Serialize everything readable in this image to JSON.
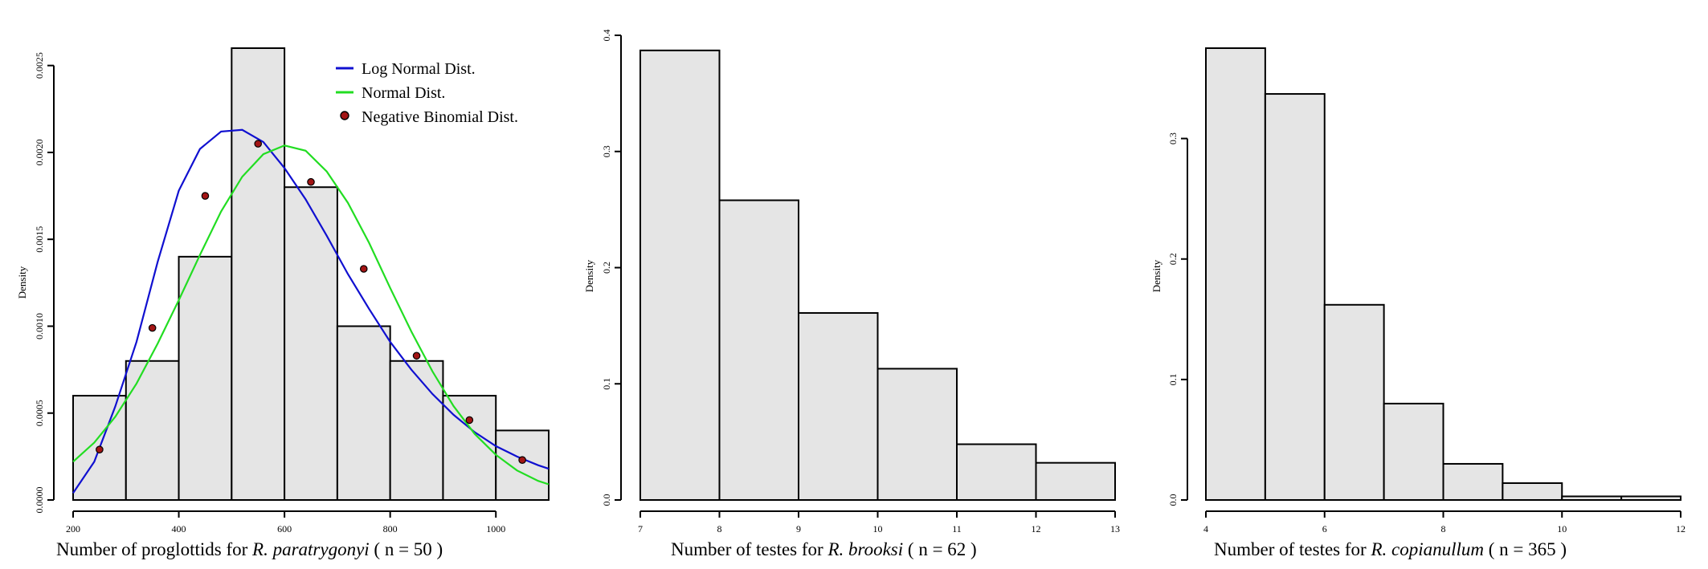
{
  "chart_data": [
    {
      "type": "bar",
      "subtype": "histogram",
      "bins": [
        [
          200,
          300
        ],
        [
          300,
          400
        ],
        [
          400,
          500
        ],
        [
          500,
          600
        ],
        [
          600,
          700
        ],
        [
          700,
          800
        ],
        [
          800,
          900
        ],
        [
          900,
          1000
        ],
        [
          1000,
          1100
        ]
      ],
      "values": [
        0.0006,
        0.0008,
        0.0014,
        0.0026,
        0.0018,
        0.001,
        0.0008,
        0.0006,
        0.0004
      ],
      "xlabel_prefix": "Number of proglottids for ",
      "xlabel_species": "R. paratrygonyi",
      "xlabel_suffix": " ( n = 50 )",
      "ylabel": "Density",
      "xlim": [
        200,
        1100
      ],
      "ylim": [
        0,
        0.0026
      ],
      "xticks": [
        200,
        400,
        600,
        800,
        1000
      ],
      "yticks": [
        0,
        0.0005,
        0.001,
        0.0015,
        0.002,
        0.0025
      ],
      "ytick_labels": [
        "0.0000",
        "0.0005",
        "0.0010",
        "0.0015",
        "0.0020",
        "0.0025"
      ],
      "legend_position": "top-right",
      "series": [
        {
          "name": "Log Normal Dist.",
          "kind": "line",
          "color": "#1010d0",
          "x": [
            200,
            240,
            280,
            320,
            360,
            400,
            440,
            480,
            520,
            560,
            600,
            640,
            680,
            720,
            760,
            800,
            840,
            880,
            920,
            960,
            1000,
            1040,
            1080,
            1100
          ],
          "y": [
            4e-05,
            0.00022,
            0.00054,
            0.00091,
            0.00137,
            0.00178,
            0.00202,
            0.00212,
            0.00213,
            0.00206,
            0.00191,
            0.00173,
            0.00152,
            0.0013,
            0.0011,
            0.00091,
            0.00075,
            0.00061,
            0.00049,
            0.00039,
            0.00031,
            0.00025,
            0.0002,
            0.00018
          ]
        },
        {
          "name": "Normal Dist.",
          "kind": "line",
          "color": "#22dd22",
          "x": [
            200,
            240,
            280,
            320,
            360,
            400,
            440,
            480,
            520,
            560,
            600,
            640,
            680,
            720,
            760,
            800,
            840,
            880,
            920,
            960,
            1000,
            1040,
            1080,
            1100
          ],
          "y": [
            0.00022,
            0.00033,
            0.00048,
            0.00067,
            0.0009,
            0.00115,
            0.00141,
            0.00166,
            0.00186,
            0.00199,
            0.00204,
            0.00201,
            0.00189,
            0.00171,
            0.00148,
            0.00122,
            0.00097,
            0.00074,
            0.00054,
            0.00038,
            0.00026,
            0.00017,
            0.00011,
            9e-05
          ]
        },
        {
          "name": "Negative Binomial Dist.",
          "kind": "points",
          "color": "#a31515",
          "x": [
            250,
            350,
            450,
            550,
            650,
            750,
            850,
            950,
            1050
          ],
          "y": [
            0.00029,
            0.00099,
            0.00175,
            0.00205,
            0.00183,
            0.00133,
            0.00083,
            0.00046,
            0.00023
          ]
        }
      ]
    },
    {
      "type": "bar",
      "subtype": "histogram",
      "bins": [
        [
          7,
          8
        ],
        [
          8,
          9
        ],
        [
          9,
          10
        ],
        [
          10,
          11
        ],
        [
          11,
          12
        ],
        [
          12,
          13
        ]
      ],
      "values": [
        0.387,
        0.258,
        0.161,
        0.113,
        0.048,
        0.032
      ],
      "xlabel_prefix": "Number of testes for ",
      "xlabel_species": "R. brooksi",
      "xlabel_suffix": " ( n = 62 )",
      "ylabel": "Density",
      "xlim": [
        7,
        13
      ],
      "ylim": [
        0,
        0.4
      ],
      "xticks": [
        7,
        8,
        9,
        10,
        11,
        12,
        13
      ],
      "yticks": [
        0,
        0.1,
        0.2,
        0.3,
        0.4
      ],
      "ytick_labels": [
        "0.0",
        "0.1",
        "0.2",
        "0.3",
        "0.4"
      ]
    },
    {
      "type": "bar",
      "subtype": "histogram",
      "bins": [
        [
          4,
          5
        ],
        [
          5,
          6
        ],
        [
          6,
          7
        ],
        [
          7,
          8
        ],
        [
          8,
          9
        ],
        [
          9,
          10
        ],
        [
          10,
          11
        ],
        [
          11,
          12
        ]
      ],
      "values": [
        0.375,
        0.337,
        0.162,
        0.08,
        0.03,
        0.014,
        0.003,
        0.003
      ],
      "xlabel_prefix": "Number of testes for ",
      "xlabel_species": "R. copianullum",
      "xlabel_suffix": " ( n = 365 )",
      "ylabel": "Density",
      "xlim": [
        4,
        12
      ],
      "ylim": [
        0,
        0.375
      ],
      "xticks": [
        4,
        6,
        8,
        10,
        12
      ],
      "yticks": [
        0,
        0.1,
        0.2,
        0.3
      ],
      "ytick_labels": [
        "0.0",
        "0.1",
        "0.2",
        "0.3"
      ]
    }
  ]
}
